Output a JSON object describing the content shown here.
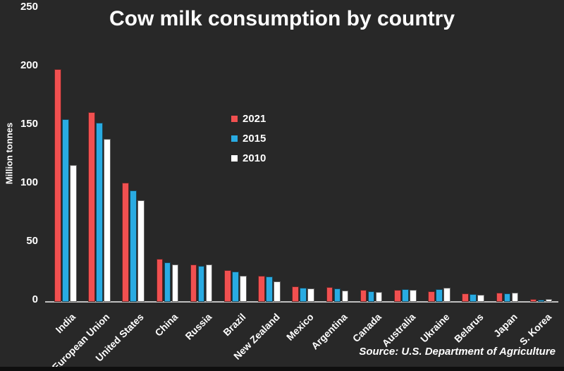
{
  "title": "Cow milk consumption by country",
  "ylabel": "Million tonnes",
  "source": "Source: U.S. Department of Agriculture",
  "colors": {
    "series_2021": "#f15050",
    "series_2015": "#29abe2",
    "series_2010": "#ffffff",
    "background": "#282828",
    "axis": "#bfbfbf",
    "text": "#ffffff"
  },
  "chart_data": {
    "type": "bar",
    "title": "Cow milk consumption by country",
    "xlabel": "",
    "ylabel": "Million tonnes",
    "ylim": [
      0,
      250
    ],
    "yticks": [
      0,
      50,
      100,
      150,
      200,
      250
    ],
    "grid": false,
    "legend_position": "upper-center-inside",
    "legend_entries": [
      "2021",
      "2015",
      "2010"
    ],
    "categories": [
      "India",
      "European Union",
      "United States",
      "China",
      "Russia",
      "Brazil",
      "New Zealand",
      "Mexico",
      "Argentina",
      "Canada",
      "Australia",
      "Ukraine",
      "Belarus",
      "Japan",
      "S. Korea"
    ],
    "series": [
      {
        "name": "2021",
        "color": "#f15050",
        "values": [
          199,
          162,
          102,
          37,
          32,
          27,
          22,
          13.5,
          12.5,
          10,
          10.5,
          9,
          7.4,
          8,
          2.5
        ]
      },
      {
        "name": "2015",
        "color": "#29abe2",
        "values": [
          156,
          153,
          95,
          34,
          30.5,
          26,
          21.5,
          12,
          11.5,
          9,
          11,
          10.8,
          6.8,
          7.5,
          2.1
        ]
      },
      {
        "name": "2010",
        "color": "#ffffff",
        "values": [
          117,
          139,
          87,
          32,
          32,
          22,
          17.5,
          11.3,
          9.5,
          8.5,
          10,
          11.8,
          6.2,
          8,
          2.6
        ]
      }
    ]
  }
}
